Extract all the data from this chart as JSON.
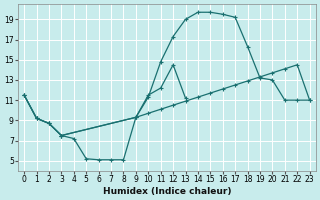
{
  "xlabel": "Humidex (Indice chaleur)",
  "bg_color": "#c8ecec",
  "grid_color": "#ffffff",
  "line_color": "#1a7070",
  "xlim": [
    -0.5,
    23.5
  ],
  "ylim": [
    4,
    20.5
  ],
  "xticks": [
    0,
    1,
    2,
    3,
    4,
    5,
    6,
    7,
    8,
    9,
    10,
    11,
    12,
    13,
    14,
    15,
    16,
    17,
    18,
    19,
    20,
    21,
    22,
    23
  ],
  "yticks": [
    5,
    7,
    9,
    11,
    13,
    15,
    17,
    19
  ],
  "curve1_x": [
    0,
    1,
    2,
    3,
    4,
    5,
    6,
    7,
    8,
    9,
    10,
    11,
    12,
    13
  ],
  "curve1_y": [
    11.5,
    9.2,
    8.7,
    7.5,
    7.2,
    5.2,
    5.1,
    5.1,
    5.1,
    9.3,
    11.5,
    12.2,
    14.5,
    11.2
  ],
  "curve2_x": [
    0,
    1,
    2,
    3,
    9,
    10,
    11,
    12,
    13,
    14,
    15,
    16,
    17,
    18,
    19,
    20,
    21,
    22,
    23
  ],
  "curve2_y": [
    11.5,
    9.2,
    8.7,
    7.5,
    9.3,
    11.3,
    14.8,
    17.3,
    19.0,
    19.7,
    19.7,
    19.5,
    19.2,
    16.3,
    13.2,
    13.0,
    11.0,
    11.0,
    11.0
  ],
  "curve3_x": [
    0,
    1,
    2,
    3,
    9,
    10,
    11,
    12,
    13,
    14,
    15,
    16,
    17,
    18,
    19,
    20,
    21,
    22,
    23
  ],
  "curve3_y": [
    11.5,
    9.2,
    8.7,
    7.5,
    9.3,
    9.7,
    10.1,
    10.5,
    10.9,
    11.3,
    11.7,
    12.1,
    12.5,
    12.9,
    13.3,
    13.7,
    14.1,
    14.5,
    11.0
  ]
}
